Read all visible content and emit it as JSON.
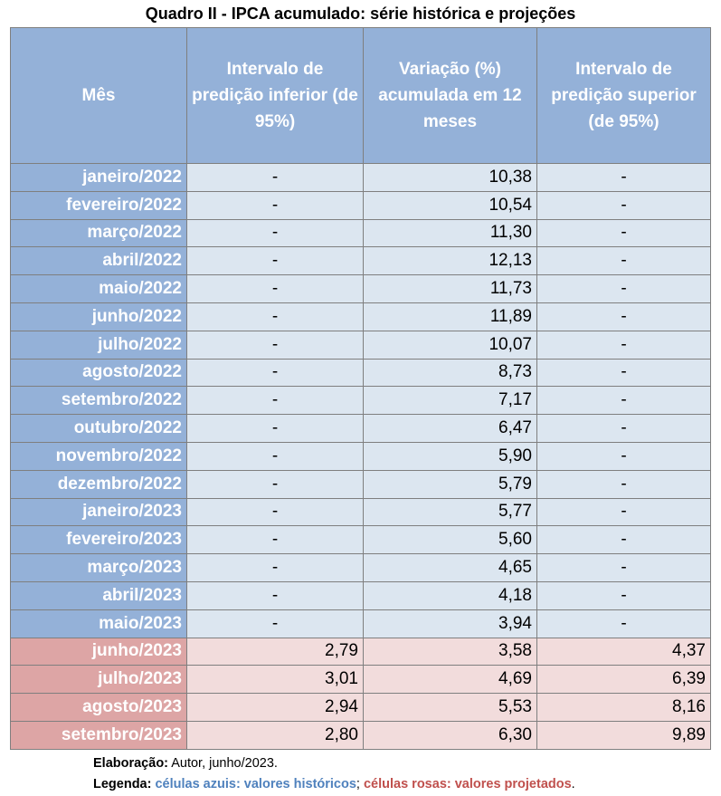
{
  "title": "Quadro II - IPCA acumulado: série histórica e projeções",
  "headers": [
    "Mês",
    "Intervalo de predição inferior (de 95%)",
    "Variação (%) acumulada em 12 meses",
    "Intervalo de predição superior (de 95%)"
  ],
  "rows": [
    {
      "mes": "janeiro/2022",
      "inf": "-",
      "var": "10,38",
      "sup": "-",
      "kind": "hist"
    },
    {
      "mes": "fevereiro/2022",
      "inf": "-",
      "var": "10,54",
      "sup": "-",
      "kind": "hist"
    },
    {
      "mes": "março/2022",
      "inf": "-",
      "var": "11,30",
      "sup": "-",
      "kind": "hist"
    },
    {
      "mes": "abril/2022",
      "inf": "-",
      "var": "12,13",
      "sup": "-",
      "kind": "hist"
    },
    {
      "mes": "maio/2022",
      "inf": "-",
      "var": "11,73",
      "sup": "-",
      "kind": "hist"
    },
    {
      "mes": "junho/2022",
      "inf": "-",
      "var": "11,89",
      "sup": "-",
      "kind": "hist"
    },
    {
      "mes": "julho/2022",
      "inf": "-",
      "var": "10,07",
      "sup": "-",
      "kind": "hist"
    },
    {
      "mes": "agosto/2022",
      "inf": "-",
      "var": "8,73",
      "sup": "-",
      "kind": "hist"
    },
    {
      "mes": "setembro/2022",
      "inf": "-",
      "var": "7,17",
      "sup": "-",
      "kind": "hist"
    },
    {
      "mes": "outubro/2022",
      "inf": "-",
      "var": "6,47",
      "sup": "-",
      "kind": "hist"
    },
    {
      "mes": "novembro/2022",
      "inf": "-",
      "var": "5,90",
      "sup": "-",
      "kind": "hist"
    },
    {
      "mes": "dezembro/2022",
      "inf": "-",
      "var": "5,79",
      "sup": "-",
      "kind": "hist"
    },
    {
      "mes": "janeiro/2023",
      "inf": "-",
      "var": "5,77",
      "sup": "-",
      "kind": "hist"
    },
    {
      "mes": "fevereiro/2023",
      "inf": "-",
      "var": "5,60",
      "sup": "-",
      "kind": "hist"
    },
    {
      "mes": "março/2023",
      "inf": "-",
      "var": "4,65",
      "sup": "-",
      "kind": "hist"
    },
    {
      "mes": "abril/2023",
      "inf": "-",
      "var": "4,18",
      "sup": "-",
      "kind": "hist"
    },
    {
      "mes": "maio/2023",
      "inf": "-",
      "var": "3,94",
      "sup": "-",
      "kind": "hist"
    },
    {
      "mes": "junho/2023",
      "inf": "2,79",
      "var": "3,58",
      "sup": "4,37",
      "kind": "proj"
    },
    {
      "mes": "julho/2023",
      "inf": "3,01",
      "var": "4,69",
      "sup": "6,39",
      "kind": "proj"
    },
    {
      "mes": "agosto/2023",
      "inf": "2,94",
      "var": "5,53",
      "sup": "8,16",
      "kind": "proj"
    },
    {
      "mes": "setembro/2023",
      "inf": "2,80",
      "var": "6,30",
      "sup": "9,89",
      "kind": "proj"
    }
  ],
  "notes": {
    "elaboracao_label": "Elaboração:",
    "elaboracao_text": " Autor, junho/2023.",
    "legenda_label": "Legenda:",
    "legenda_blue": "células azuis: valores históricos",
    "legenda_sep": "; ",
    "legenda_pink": "células rosas: valores projetados",
    "legenda_end": "."
  },
  "colors": {
    "header_blue": "#94b1d8",
    "cell_blue": "#dce6f0",
    "header_pink": "#dda5a5",
    "cell_pink": "#f2dcdc",
    "legend_blue": "#4f81bd",
    "legend_pink": "#c0504d"
  }
}
